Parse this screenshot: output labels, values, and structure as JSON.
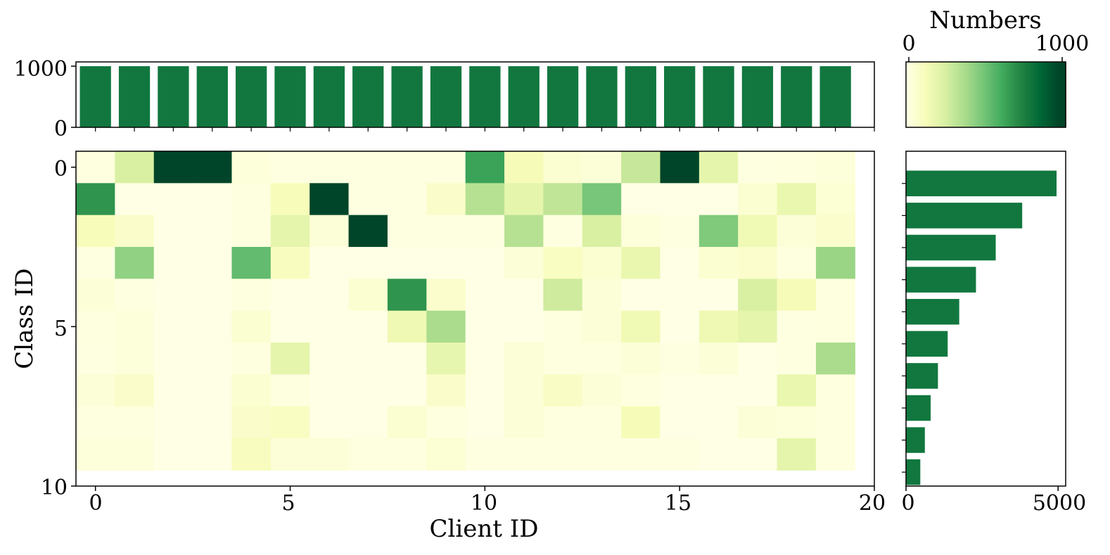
{
  "chart_data": [
    {
      "type": "bar",
      "panel": "top samples per client",
      "categories": [
        0,
        1,
        2,
        3,
        4,
        5,
        6,
        7,
        8,
        9,
        10,
        11,
        12,
        13,
        14,
        15,
        16,
        17,
        18,
        19
      ],
      "values": [
        1000,
        1000,
        1000,
        1000,
        1000,
        1000,
        1000,
        1000,
        1000,
        1000,
        1000,
        1000,
        1000,
        1000,
        1000,
        1000,
        1000,
        1000,
        1000,
        1000
      ],
      "ylim": [
        0,
        1000
      ],
      "yticks": [
        "0",
        "1000"
      ],
      "color": "#11773f"
    },
    {
      "type": "heatmap",
      "panel": "main",
      "xlabel": "Client ID",
      "ylabel": "Class ID",
      "xticks": [
        "0",
        "5",
        "10",
        "15",
        "20"
      ],
      "yticks": [
        "0",
        "5",
        "10"
      ],
      "xlim": [
        -0.5,
        20
      ],
      "ylim": [
        10,
        -0.5
      ],
      "matrix": [
        [
          20,
          250,
          1000,
          1000,
          30,
          10,
          10,
          10,
          10,
          10,
          650,
          130,
          60,
          40,
          300,
          1000,
          200,
          10,
          20,
          30
        ],
        [
          700,
          0,
          0,
          0,
          20,
          120,
          1000,
          10,
          10,
          80,
          350,
          200,
          320,
          500,
          0,
          0,
          0,
          60,
          180,
          50
        ],
        [
          120,
          80,
          0,
          0,
          20,
          200,
          40,
          1000,
          10,
          10,
          10,
          350,
          10,
          250,
          30,
          10,
          480,
          150,
          40,
          70
        ],
        [
          10,
          440,
          0,
          0,
          550,
          110,
          0,
          0,
          0,
          0,
          0,
          40,
          100,
          60,
          180,
          0,
          60,
          70,
          20,
          420
        ],
        [
          40,
          10,
          0,
          0,
          20,
          0,
          0,
          60,
          700,
          70,
          0,
          0,
          280,
          40,
          0,
          0,
          0,
          250,
          130,
          20
        ],
        [
          20,
          30,
          0,
          0,
          60,
          0,
          0,
          0,
          160,
          380,
          0,
          0,
          20,
          40,
          150,
          0,
          160,
          200,
          10,
          20
        ],
        [
          10,
          30,
          0,
          0,
          20,
          200,
          0,
          0,
          0,
          190,
          0,
          40,
          20,
          20,
          40,
          10,
          40,
          0,
          10,
          380
        ],
        [
          40,
          80,
          0,
          0,
          60,
          20,
          0,
          0,
          0,
          80,
          0,
          40,
          90,
          40,
          20,
          0,
          0,
          0,
          180,
          20
        ],
        [
          20,
          20,
          0,
          0,
          80,
          100,
          0,
          0,
          60,
          20,
          0,
          40,
          20,
          20,
          130,
          0,
          0,
          40,
          30,
          20
        ],
        [
          30,
          30,
          0,
          0,
          110,
          40,
          40,
          20,
          20,
          50,
          10,
          10,
          10,
          10,
          10,
          10,
          0,
          0,
          200,
          20
        ]
      ]
    },
    {
      "type": "colorbar",
      "title": "Numbers",
      "range": [
        0,
        1000
      ],
      "ticks": [
        "0",
        "1000"
      ],
      "colormap": "YlGn",
      "colors": [
        "#ffffe5",
        "#f7fcb9",
        "#d9f0a3",
        "#addd8e",
        "#78c679",
        "#41ab5d",
        "#238443",
        "#006837",
        "#004529"
      ]
    },
    {
      "type": "bar",
      "orientation": "horizontal",
      "panel": "right samples per class",
      "categories": [
        0,
        1,
        2,
        3,
        4,
        5,
        6,
        7,
        8,
        9
      ],
      "values": [
        4950,
        3820,
        2950,
        2300,
        1750,
        1370,
        1050,
        810,
        620,
        470
      ],
      "xlim": [
        0,
        5000
      ],
      "xticks": [
        "0",
        "5000"
      ],
      "color": "#11773f"
    }
  ]
}
